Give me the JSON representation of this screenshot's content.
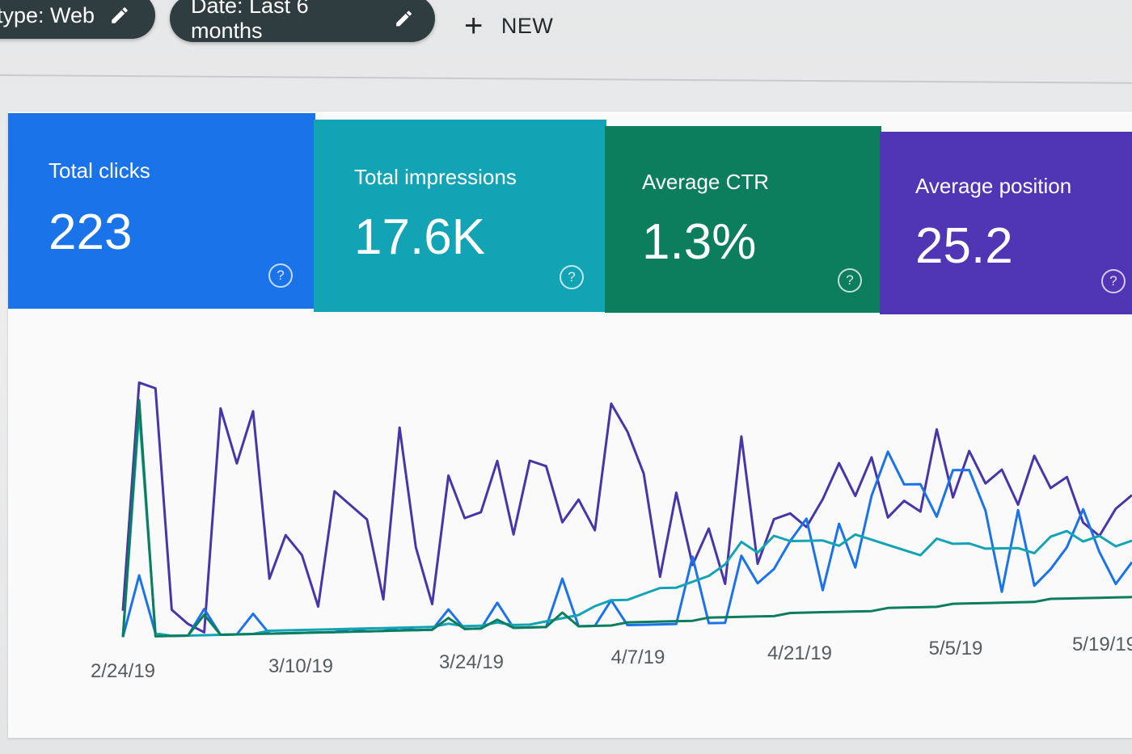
{
  "filters": {
    "type_label": "type: Web",
    "date_label": "Date: Last 6 months",
    "new_label": "NEW"
  },
  "metrics": [
    {
      "label": "Total clicks",
      "value": "223",
      "help": "?",
      "color": "#1a73e8"
    },
    {
      "label": "Total impressions",
      "value": "17.6K",
      "help": "?",
      "color": "#12a4b5"
    },
    {
      "label": "Average CTR",
      "value": "1.3%",
      "help": "?",
      "color": "#0d7e5d"
    },
    {
      "label": "Average position",
      "value": "25.2",
      "help": "?",
      "color": "#5035b4"
    }
  ],
  "chart_data": {
    "type": "line",
    "x_ticks": [
      "2/24/19",
      "3/10/19",
      "3/24/19",
      "4/7/19",
      "4/21/19",
      "5/5/19",
      "5/19/19"
    ],
    "series": [
      {
        "color": "#4a35a8",
        "values": [
          10,
          88,
          86,
          10,
          5,
          2,
          79,
          60,
          78,
          20,
          35,
          28,
          10,
          50,
          45,
          40,
          12,
          72,
          30,
          10,
          55,
          40,
          42,
          60,
          34,
          60,
          58,
          38,
          46,
          35,
          80,
          70,
          55,
          18,
          48,
          22,
          35,
          15,
          68,
          22,
          38,
          40,
          35,
          45,
          58,
          46,
          60,
          38,
          44,
          40,
          70,
          45,
          62,
          50,
          55,
          42,
          60,
          48,
          52,
          35,
          30,
          40,
          45
        ]
      },
      {
        "color": "#1a73e8",
        "values": [
          1,
          22,
          2,
          1,
          1,
          10,
          1,
          1,
          8,
          1,
          1,
          1,
          1,
          1,
          2,
          1,
          1,
          2,
          1,
          1,
          8,
          1,
          1,
          10,
          1,
          1,
          1,
          18,
          1,
          1,
          10,
          1,
          1,
          1,
          1,
          25,
          1,
          1,
          25,
          15,
          20,
          30,
          38,
          12,
          36,
          20,
          46,
          62,
          50,
          50,
          38,
          55,
          55,
          40,
          10,
          40,
          12,
          18,
          26,
          40,
          24,
          12,
          20
        ]
      },
      {
        "color": "#12a4b5",
        "values": [
          1,
          78,
          2,
          1,
          1,
          1,
          1,
          1,
          1,
          2,
          2,
          2,
          2,
          2,
          2,
          2,
          2,
          2,
          2,
          2,
          3,
          2,
          2,
          3,
          2,
          2,
          3,
          4,
          5,
          8,
          10,
          10,
          12,
          14,
          14,
          16,
          18,
          22,
          30,
          26,
          32,
          30,
          30,
          30,
          28,
          32,
          30,
          28,
          26,
          24,
          30,
          28,
          28,
          26,
          26,
          26,
          24,
          30,
          32,
          28,
          30,
          26,
          28
        ]
      },
      {
        "color": "#0d7e5d",
        "values": [
          1,
          82,
          1,
          1,
          1,
          8,
          1,
          1,
          1,
          1,
          1,
          1,
          1,
          1,
          1,
          1,
          1,
          1,
          1,
          1,
          5,
          1,
          1,
          4,
          1,
          1,
          1,
          6,
          1,
          1,
          1,
          2,
          2,
          2,
          2,
          2,
          3,
          3,
          3,
          3,
          3,
          4,
          4,
          4,
          4,
          4,
          4,
          5,
          5,
          5,
          5,
          6,
          6,
          6,
          6,
          6,
          6,
          7,
          7,
          7,
          7,
          7,
          7
        ]
      }
    ],
    "ylim": [
      0,
      100
    ],
    "grid": false,
    "legend": "none"
  }
}
